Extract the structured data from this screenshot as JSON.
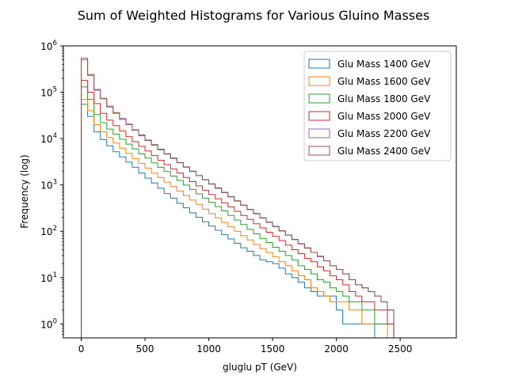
{
  "chart_data": {
    "type": "histogram-step",
    "title": "Sum of Weighted Histograms for Various Gluino Masses",
    "xlabel": "gluglu pT (GeV)",
    "ylabel": "Frequency (log)",
    "xlim": [
      -140,
      2940
    ],
    "ylim": [
      0.5,
      1000000
    ],
    "y_scale": "log",
    "bin_width": 50,
    "x_ticks": [
      0,
      500,
      1000,
      1500,
      2000,
      2500
    ],
    "y_ticks": [
      1,
      10,
      100,
      1000,
      10000,
      100000,
      1000000
    ],
    "y_tick_labels": [
      {
        "base": "10",
        "exp": "0"
      },
      {
        "base": "10",
        "exp": "1"
      },
      {
        "base": "10",
        "exp": "2"
      },
      {
        "base": "10",
        "exp": "3"
      },
      {
        "base": "10",
        "exp": "4"
      },
      {
        "base": "10",
        "exp": "5"
      },
      {
        "base": "10",
        "exp": "6"
      }
    ],
    "grid": false,
    "legend_position": "top-right",
    "series": [
      {
        "name": "Glu Mass 1400 GeV",
        "color": "#1f77b4",
        "bin_start": 0,
        "values": [
          55000,
          30000,
          14000,
          9500,
          7000,
          5200,
          4000,
          3100,
          2400,
          1800,
          1400,
          1100,
          850,
          650,
          520,
          400,
          320,
          250,
          200,
          160,
          130,
          105,
          85,
          68,
          55,
          44,
          37,
          30,
          24,
          22,
          20,
          16,
          12,
          10,
          8,
          6,
          5,
          4,
          4,
          4,
          2,
          1,
          1,
          1,
          1,
          1,
          0,
          0,
          0
        ]
      },
      {
        "name": "Glu Mass 1600 GeV",
        "color": "#ff7f0e",
        "bin_start": 0,
        "values": [
          70000,
          40000,
          20000,
          14000,
          10500,
          8000,
          6200,
          4800,
          3700,
          2900,
          2300,
          1800,
          1450,
          1150,
          920,
          740,
          590,
          470,
          380,
          300,
          240,
          195,
          155,
          125,
          100,
          80,
          65,
          52,
          42,
          35,
          28,
          22,
          18,
          14,
          11,
          9,
          6,
          5,
          4,
          3,
          3,
          3,
          2,
          2,
          1,
          1,
          1,
          1,
          0
        ]
      },
      {
        "name": "Glu Mass 1800 GeV",
        "color": "#2ca02c",
        "bin_start": 0,
        "values": [
          130000,
          70000,
          33000,
          22000,
          16000,
          12500,
          9700,
          7600,
          6000,
          4700,
          3800,
          3000,
          2400,
          1950,
          1550,
          1250,
          1000,
          800,
          640,
          520,
          420,
          340,
          275,
          220,
          175,
          140,
          110,
          88,
          70,
          57,
          45,
          37,
          30,
          24,
          18,
          15,
          12,
          9,
          8,
          6,
          5,
          4,
          3,
          3,
          2,
          2,
          1,
          1,
          1
        ]
      },
      {
        "name": "Glu Mass 2000 GeV",
        "color": "#d62728",
        "bin_start": 0,
        "values": [
          180000,
          100000,
          57000,
          35000,
          25000,
          19000,
          14500,
          11000,
          8600,
          6800,
          5400,
          4300,
          3400,
          2750,
          2200,
          1800,
          1450,
          1180,
          950,
          770,
          620,
          500,
          410,
          335,
          270,
          220,
          180,
          145,
          118,
          95,
          78,
          63,
          50,
          40,
          33,
          26,
          22,
          17,
          14,
          11,
          9,
          7,
          5,
          4,
          3,
          3,
          2,
          2,
          1
        ]
      },
      {
        "name": "Glu Mass 2200 GeV",
        "color": "#9467bd",
        "bin_start": 0,
        "values": [
          500000,
          230000,
          110000,
          72000,
          48000,
          35000,
          26000,
          20000,
          15000,
          11500,
          9000,
          7200,
          5700,
          4600,
          3700,
          3000,
          2400,
          1950,
          1580,
          1280,
          1040,
          840,
          680,
          550,
          445,
          360,
          292,
          236,
          191,
          155,
          125,
          101,
          82,
          66,
          53,
          43,
          35,
          28,
          23,
          18,
          15,
          12,
          9,
          7,
          6,
          5,
          4,
          3,
          2
        ]
      },
      {
        "name": "Glu Mass 2400 GeV",
        "color": "#8c564b",
        "bin_start": 0,
        "values": [
          540000,
          240000,
          115000,
          74000,
          50000,
          36000,
          27000,
          20500,
          15500,
          12000,
          9300,
          7400,
          5900,
          4700,
          3800,
          3050,
          2450,
          1980,
          1600,
          1300,
          1060,
          860,
          695,
          560,
          455,
          368,
          298,
          242,
          196,
          158,
          128,
          103,
          83,
          67,
          54,
          44,
          35,
          29,
          23,
          18,
          15,
          12,
          9,
          7,
          6,
          5,
          4,
          3,
          2
        ]
      }
    ]
  }
}
